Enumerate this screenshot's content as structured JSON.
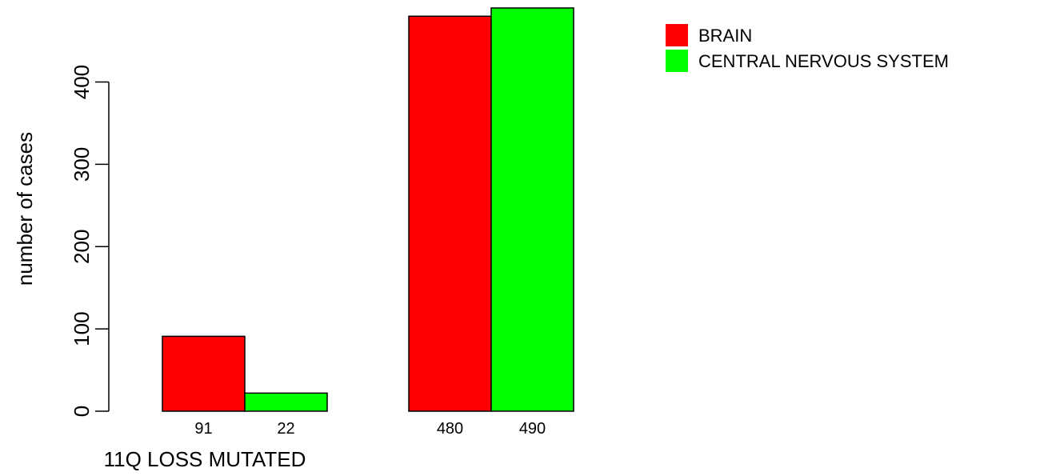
{
  "chart_data": {
    "type": "bar",
    "title": "",
    "xlabel": "11Q LOSS MUTATED",
    "ylabel": "number of cases",
    "ylim": [
      0,
      490
    ],
    "yticks": [
      0,
      100,
      200,
      300,
      400
    ],
    "grid": false,
    "legend_position": "top-right",
    "groups": [
      {
        "bars": [
          {
            "series": "BRAIN",
            "value": 91,
            "label": "91"
          },
          {
            "series": "CENTRAL NERVOUS SYSTEM",
            "value": 22,
            "label": "22"
          }
        ]
      },
      {
        "bars": [
          {
            "series": "BRAIN",
            "value": 480,
            "label": "480"
          },
          {
            "series": "CENTRAL NERVOUS SYSTEM",
            "value": 490,
            "label": "490"
          }
        ]
      }
    ],
    "series": [
      {
        "name": "BRAIN",
        "color": "#ff0000",
        "values": [
          91,
          480
        ]
      },
      {
        "name": "CENTRAL NERVOUS SYSTEM",
        "color": "#00ff00",
        "values": [
          22,
          490
        ]
      }
    ]
  }
}
